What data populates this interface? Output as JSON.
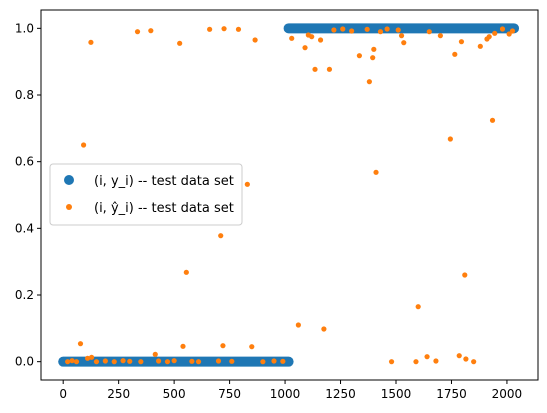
{
  "chart_data": {
    "type": "scatter",
    "title": "",
    "xlabel": "",
    "ylabel": "",
    "xlim": [
      -100,
      2140
    ],
    "ylim": [
      -0.055,
      1.055
    ],
    "xticks": [
      0,
      250,
      500,
      750,
      1000,
      1250,
      1500,
      1750,
      2000
    ],
    "xtick_labels": [
      "0",
      "250",
      "500",
      "750",
      "1000",
      "1250",
      "1500",
      "1750",
      "2000"
    ],
    "yticks": [
      0.0,
      0.2,
      0.4,
      0.6,
      0.8,
      1.0
    ],
    "ytick_labels": [
      "0.0",
      "0.2",
      "0.4",
      "0.6",
      "0.8",
      "1.0"
    ],
    "grid": false,
    "legend_position": "center-left",
    "series": [
      {
        "name": "(i, y_i) -- test data set",
        "marker": "circle",
        "color": "#1f77b4",
        "segments": [
          {
            "x_start": 0,
            "x_end": 1016,
            "y": 0
          },
          {
            "x_start": 1016,
            "x_end": 2032,
            "y": 1
          }
        ]
      },
      {
        "name": "(i, ŷ_i) -- test data set",
        "marker": "circle-small",
        "color": "#ff7f0e",
        "points": [
          [
            20,
            0.0
          ],
          [
            40,
            0.003
          ],
          [
            60,
            0.0
          ],
          [
            78,
            0.054
          ],
          [
            92,
            0.65
          ],
          [
            110,
            0.01
          ],
          [
            125,
            0.958
          ],
          [
            128,
            0.013
          ],
          [
            150,
            0.0
          ],
          [
            190,
            0.002
          ],
          [
            230,
            0.0
          ],
          [
            270,
            0.003
          ],
          [
            300,
            0.001
          ],
          [
            335,
            0.99
          ],
          [
            350,
            0.0
          ],
          [
            395,
            0.993
          ],
          [
            415,
            0.022
          ],
          [
            430,
            0.002
          ],
          [
            470,
            0.0
          ],
          [
            500,
            0.003
          ],
          [
            525,
            0.955
          ],
          [
            540,
            0.046
          ],
          [
            555,
            0.268
          ],
          [
            580,
            0.001
          ],
          [
            610,
            0.0
          ],
          [
            660,
            0.997
          ],
          [
            700,
            0.002
          ],
          [
            710,
            0.378
          ],
          [
            720,
            0.048
          ],
          [
            725,
            0.999
          ],
          [
            760,
            0.001
          ],
          [
            790,
            0.997
          ],
          [
            830,
            0.532
          ],
          [
            850,
            0.045
          ],
          [
            865,
            0.965
          ],
          [
            900,
            0.0
          ],
          [
            950,
            0.002
          ],
          [
            990,
            0.001
          ],
          [
            1030,
            0.97
          ],
          [
            1060,
            0.11
          ],
          [
            1090,
            0.942
          ],
          [
            1105,
            0.98
          ],
          [
            1120,
            0.975
          ],
          [
            1135,
            0.877
          ],
          [
            1160,
            0.965
          ],
          [
            1175,
            0.098
          ],
          [
            1200,
            0.877
          ],
          [
            1220,
            0.995
          ],
          [
            1260,
            0.998
          ],
          [
            1300,
            0.992
          ],
          [
            1335,
            0.918
          ],
          [
            1370,
            0.997
          ],
          [
            1380,
            0.84
          ],
          [
            1395,
            0.912
          ],
          [
            1400,
            0.937
          ],
          [
            1410,
            0.568
          ],
          [
            1430,
            0.99
          ],
          [
            1460,
            0.998
          ],
          [
            1480,
            0.0
          ],
          [
            1510,
            0.995
          ],
          [
            1525,
            0.978
          ],
          [
            1535,
            0.957
          ],
          [
            1590,
            0.0
          ],
          [
            1600,
            0.165
          ],
          [
            1640,
            0.015
          ],
          [
            1650,
            0.99
          ],
          [
            1680,
            0.002
          ],
          [
            1700,
            0.978
          ],
          [
            1745,
            0.668
          ],
          [
            1765,
            0.922
          ],
          [
            1785,
            0.018
          ],
          [
            1795,
            0.96
          ],
          [
            1810,
            0.26
          ],
          [
            1815,
            0.008
          ],
          [
            1850,
            0.0
          ],
          [
            1880,
            0.946
          ],
          [
            1910,
            0.968
          ],
          [
            1920,
            0.975
          ],
          [
            1935,
            0.724
          ],
          [
            1945,
            0.985
          ],
          [
            1980,
            0.998
          ],
          [
            2010,
            0.983
          ],
          [
            2025,
            0.992
          ]
        ]
      }
    ]
  }
}
